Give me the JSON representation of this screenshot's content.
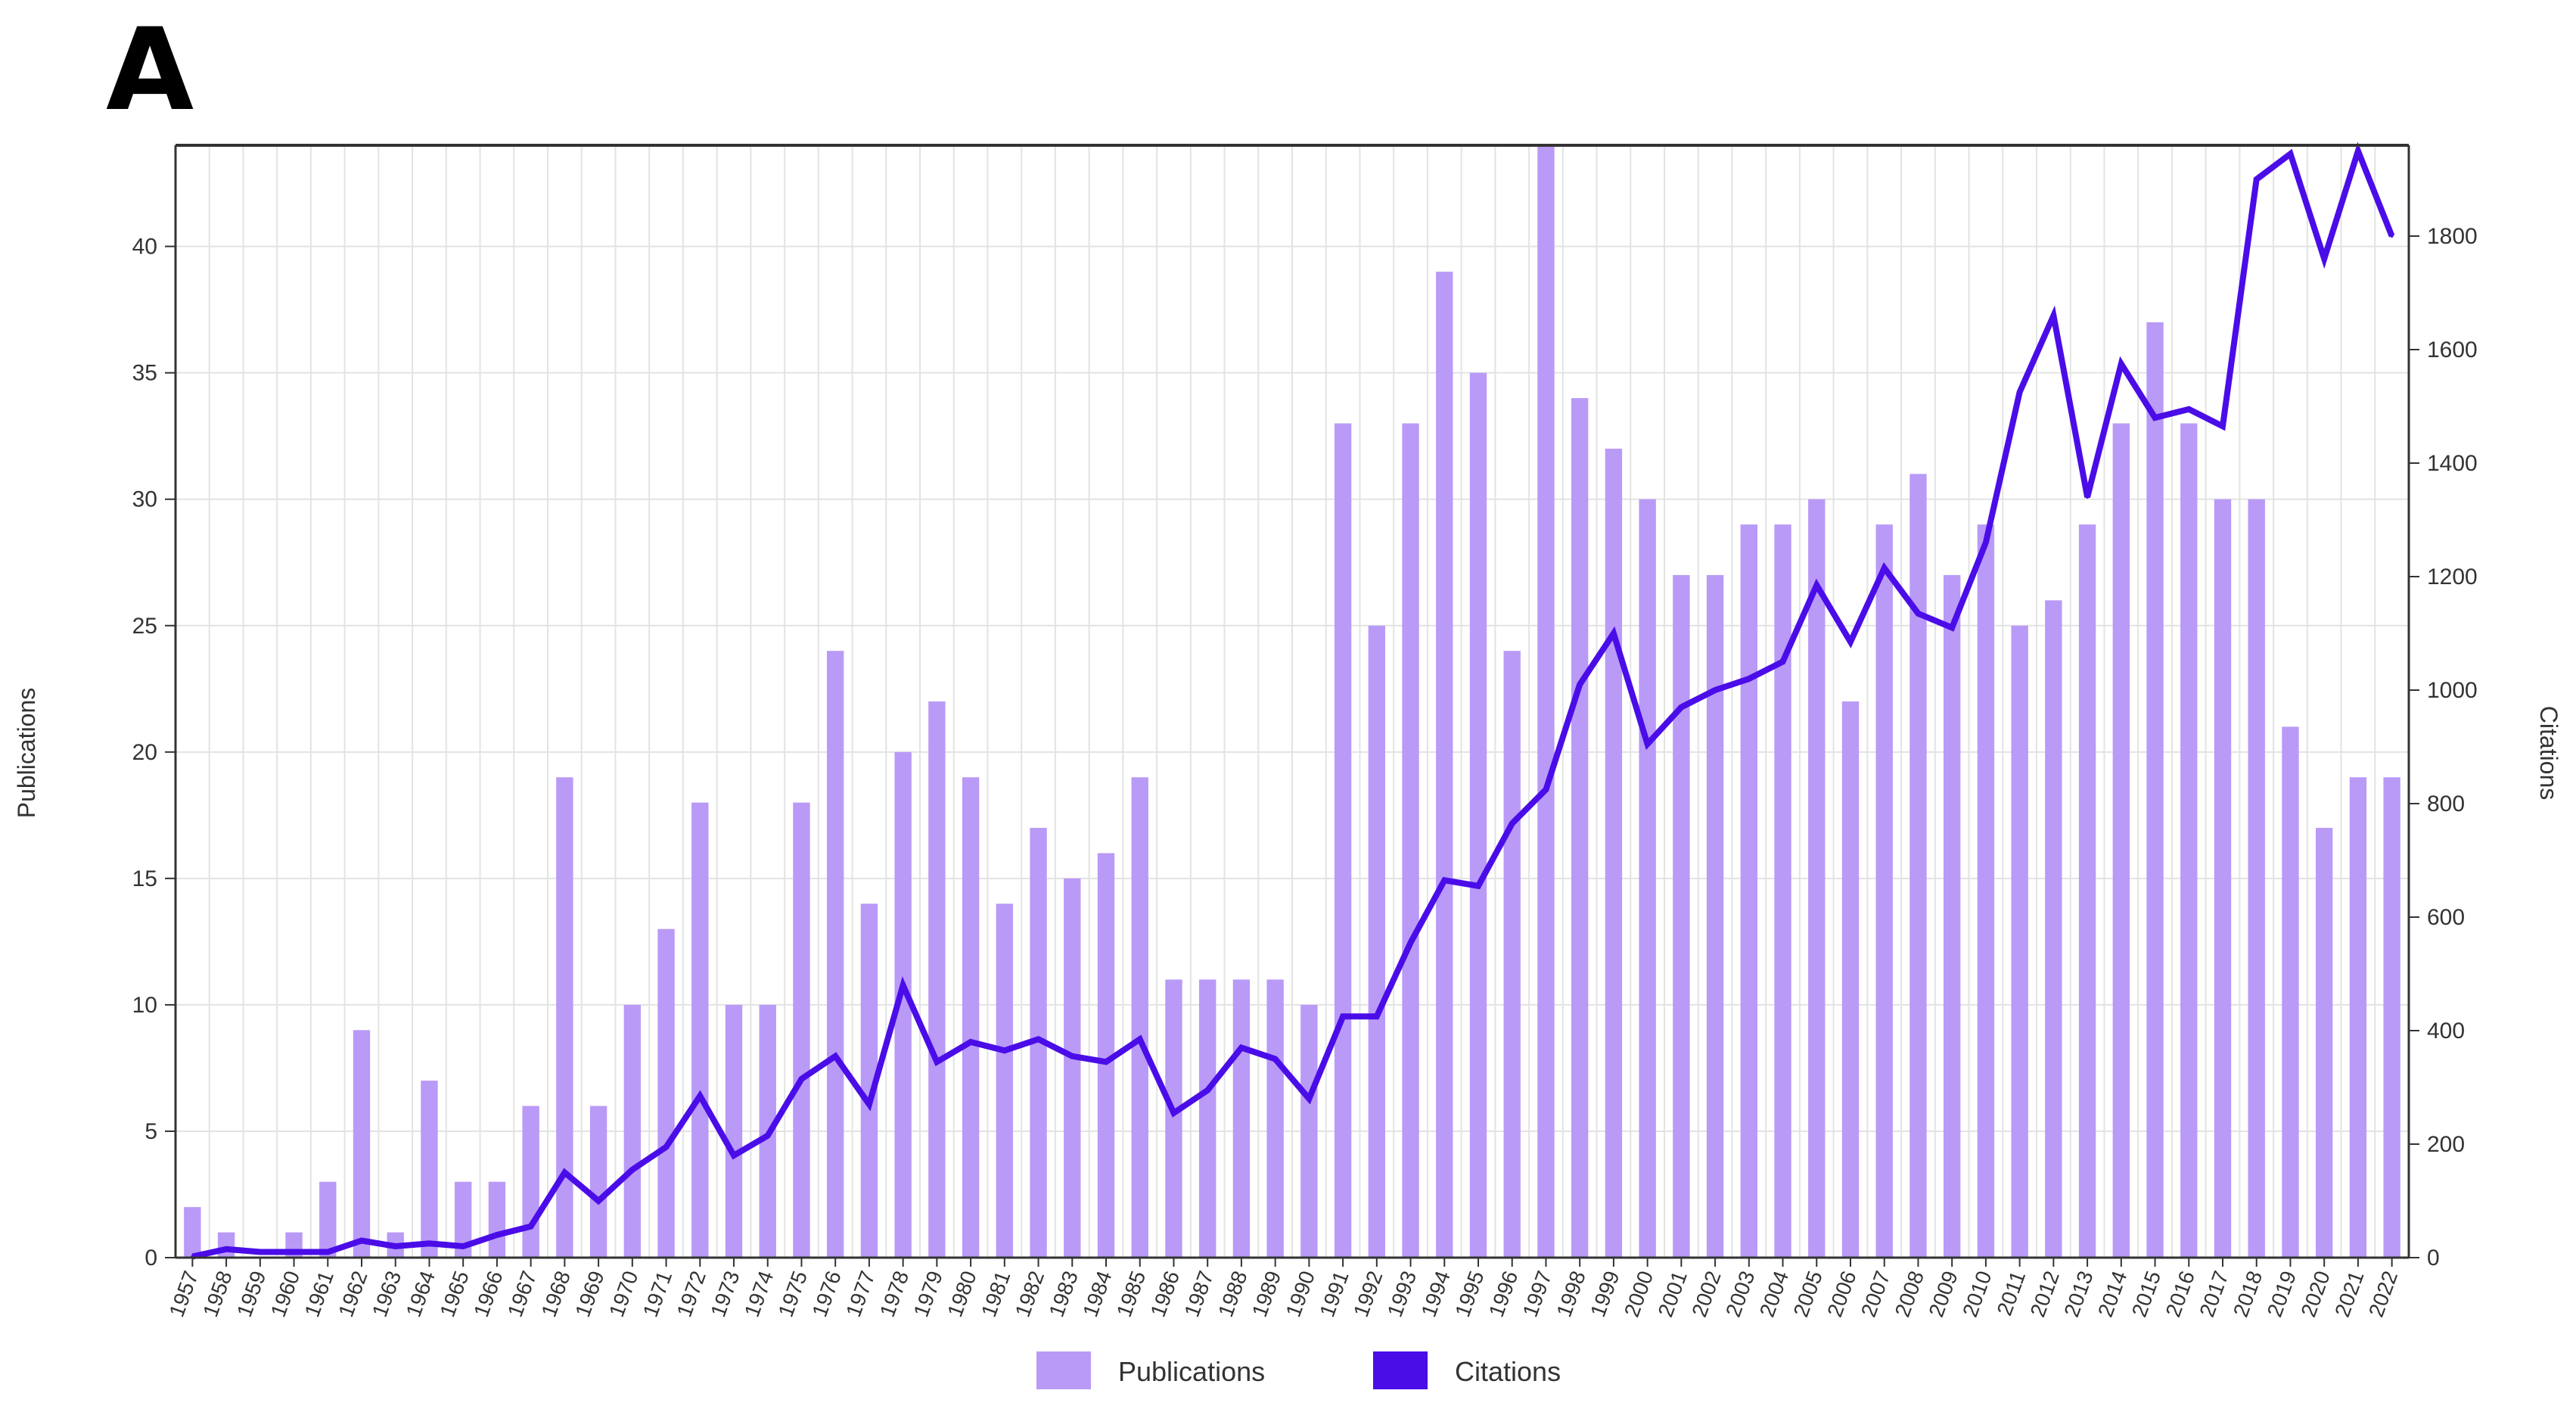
{
  "panel_label": "A",
  "chart_data": {
    "type": "bar+line",
    "categories": [
      "1957",
      "1958",
      "1959",
      "1960",
      "1961",
      "1962",
      "1963",
      "1964",
      "1965",
      "1966",
      "1967",
      "1968",
      "1969",
      "1970",
      "1971",
      "1972",
      "1973",
      "1974",
      "1975",
      "1976",
      "1977",
      "1978",
      "1979",
      "1980",
      "1981",
      "1982",
      "1983",
      "1984",
      "1985",
      "1986",
      "1987",
      "1988",
      "1989",
      "1990",
      "1991",
      "1992",
      "1993",
      "1994",
      "1995",
      "1996",
      "1997",
      "1998",
      "1999",
      "2000",
      "2001",
      "2002",
      "2003",
      "2004",
      "2005",
      "2006",
      "2007",
      "2008",
      "2009",
      "2010",
      "2011",
      "2012",
      "2013",
      "2014",
      "2015",
      "2016",
      "2017",
      "2018",
      "2019",
      "2020",
      "2021",
      "2022"
    ],
    "series": [
      {
        "name": "Publications",
        "type": "bar",
        "axis": "left",
        "color": "#b99af7",
        "values": [
          2,
          1,
          0,
          1,
          3,
          9,
          1,
          7,
          3,
          3,
          6,
          19,
          6,
          10,
          13,
          18,
          10,
          10,
          18,
          24,
          14,
          20,
          22,
          19,
          14,
          17,
          15,
          16,
          19,
          11,
          11,
          11,
          11,
          10,
          33,
          25,
          33,
          39,
          35,
          24,
          44,
          34,
          32,
          30,
          27,
          27,
          29,
          29,
          30,
          22,
          29,
          31,
          27,
          29,
          25,
          26,
          29,
          33,
          37,
          33,
          30,
          30,
          21,
          17,
          19,
          19
        ]
      },
      {
        "name": "Citations",
        "type": "line",
        "axis": "right",
        "color": "#4a0de8",
        "values": [
          2,
          15,
          10,
          10,
          10,
          30,
          20,
          25,
          20,
          40,
          55,
          150,
          100,
          155,
          195,
          285,
          180,
          215,
          315,
          355,
          270,
          480,
          345,
          380,
          365,
          385,
          355,
          345,
          385,
          255,
          295,
          370,
          350,
          280,
          425,
          425,
          555,
          665,
          655,
          765,
          825,
          1010,
          1100,
          905,
          970,
          1000,
          1020,
          1050,
          1185,
          1085,
          1215,
          1135,
          1110,
          1260,
          1525,
          1660,
          1340,
          1575,
          1480,
          1495,
          1465,
          1900,
          1945,
          1760,
          1950,
          1800
        ]
      }
    ],
    "ylabel": "Publications",
    "y2label": "Citations",
    "ylim": [
      0,
      44
    ],
    "y2lim": [
      0,
      1960
    ],
    "yticks": [
      0,
      5,
      10,
      15,
      20,
      25,
      30,
      35,
      40
    ],
    "y2ticks": [
      0,
      200,
      400,
      600,
      800,
      1000,
      1200,
      1400,
      1600,
      1800
    ],
    "grid": true,
    "legend_position": "bottom"
  }
}
